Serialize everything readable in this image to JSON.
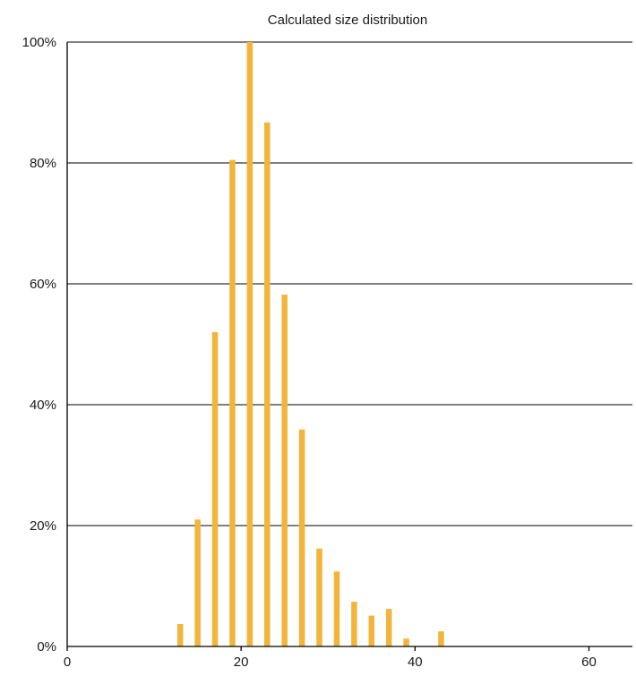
{
  "chart_data": {
    "type": "bar",
    "title": "Calculated size distribution",
    "xlabel": "",
    "ylabel": "",
    "xlim": [
      0,
      65
    ],
    "ylim": [
      0,
      100
    ],
    "x_ticks": [
      0,
      20,
      40,
      60
    ],
    "y_ticks": [
      0,
      20,
      40,
      60,
      80,
      100
    ],
    "y_tick_suffix": "%",
    "grid": "horizontal",
    "bar_color": "#F0B53A",
    "x": [
      13,
      15,
      17,
      19,
      21,
      23,
      25,
      27,
      29,
      31,
      33,
      35,
      37,
      39,
      43
    ],
    "values": [
      3.7,
      21,
      52,
      80.5,
      100,
      86.7,
      58.2,
      35.9,
      16.2,
      12.4,
      7.4,
      5.1,
      6.2,
      1.3,
      2.5
    ]
  }
}
